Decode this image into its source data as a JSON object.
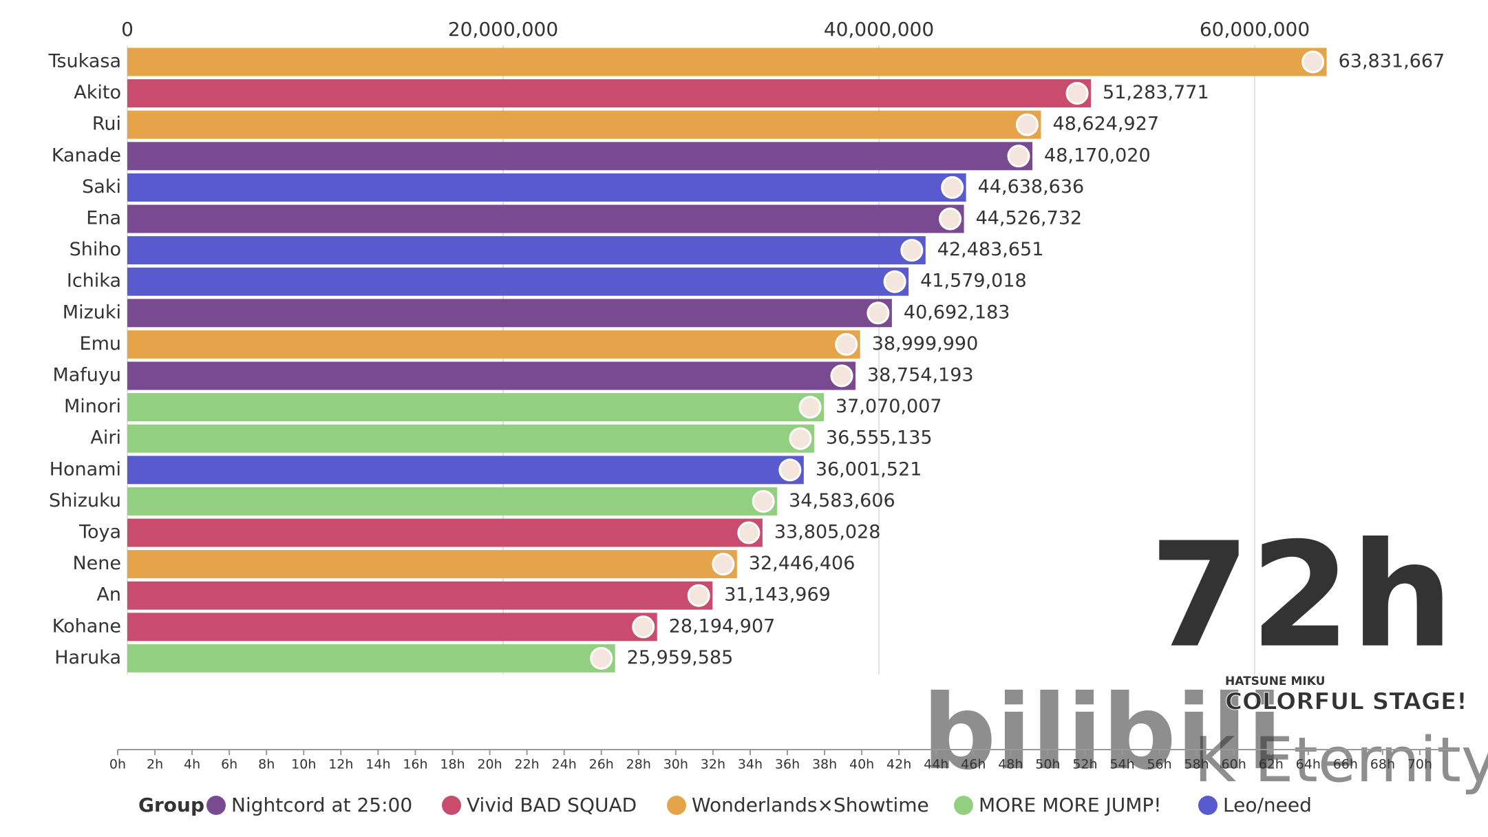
{
  "chart_data": {
    "type": "bar",
    "orientation": "horizontal",
    "categories": [
      "Tsukasa",
      "Akito",
      "Rui",
      "Kanade",
      "Saki",
      "Ena",
      "Shiho",
      "Ichika",
      "Mizuki",
      "Emu",
      "Mafuyu",
      "Minori",
      "Airi",
      "Honami",
      "Shizuku",
      "Toya",
      "Nene",
      "An",
      "Kohane",
      "Haruka"
    ],
    "values": [
      63831667,
      51283771,
      48624927,
      48170020,
      44638636,
      44526732,
      42483651,
      41579018,
      40692183,
      38999990,
      38754193,
      37070007,
      36555135,
      36001521,
      34583606,
      33805028,
      32446406,
      31143969,
      28194907,
      25959585
    ],
    "value_labels": [
      "63,831,667",
      "51,283,771",
      "48,624,927",
      "48,170,020",
      "44,638,636",
      "44,526,732",
      "42,483,651",
      "41,579,018",
      "40,692,183",
      "38,999,990",
      "38,754,193",
      "37,070,007",
      "36,555,135",
      "36,001,521",
      "34,583,606",
      "33,805,028",
      "32,446,406",
      "31,143,969",
      "28,194,907",
      "25,959,585"
    ],
    "colors": [
      "#e5a44a",
      "#c94c6e",
      "#e5a44a",
      "#7a4a90",
      "#5a5acf",
      "#7a4a90",
      "#5a5acf",
      "#5a5acf",
      "#7a4a90",
      "#e5a44a",
      "#7a4a90",
      "#93cf80",
      "#93cf80",
      "#5a5acf",
      "#93cf80",
      "#c94c6e",
      "#e5a44a",
      "#c94c6e",
      "#c94c6e",
      "#93cf80"
    ],
    "xlim": [
      0,
      70000000
    ],
    "xticks": [
      0,
      {
        "value": 20000000,
        "label": "20,000,000"
      },
      {
        "value": 40000000,
        "label": "40,000,000"
      },
      {
        "value": 60000000,
        "label": "60,000,000"
      }
    ],
    "grid": true,
    "legend": {
      "title": "Group",
      "items": [
        {
          "name": "Nightcord at 25:00",
          "color": "#7a4a90"
        },
        {
          "name": "Vivid BAD SQUAD",
          "color": "#c94c6e"
        },
        {
          "name": "Wonderlands×Showtime",
          "color": "#e5a44a"
        },
        {
          "name": "MORE MORE JUMP!",
          "color": "#93cf80"
        },
        {
          "name": "Leo/need",
          "color": "#5a5acf"
        }
      ]
    },
    "timeline": {
      "xlim": [
        0,
        72
      ],
      "current": {
        "value": 72,
        "label": "72h"
      },
      "ticks": [
        {
          "value": 0,
          "label": "0h"
        },
        {
          "value": 2,
          "label": "2h"
        },
        {
          "value": 4,
          "label": "4h"
        },
        {
          "value": 6,
          "label": "6h"
        },
        {
          "value": 8,
          "label": "8h"
        },
        {
          "value": 10,
          "label": "10h"
        },
        {
          "value": 12,
          "label": "12h"
        },
        {
          "value": 14,
          "label": "14h"
        },
        {
          "value": 16,
          "label": "16h"
        },
        {
          "value": 18,
          "label": "18h"
        },
        {
          "value": 20,
          "label": "20h"
        },
        {
          "value": 22,
          "label": "22h"
        },
        {
          "value": 24,
          "label": "24h"
        },
        {
          "value": 26,
          "label": "26h"
        },
        {
          "value": 28,
          "label": "28h"
        },
        {
          "value": 30,
          "label": "30h"
        },
        {
          "value": 32,
          "label": "32h"
        },
        {
          "value": 34,
          "label": "34h"
        },
        {
          "value": 36,
          "label": "36h"
        },
        {
          "value": 38,
          "label": "38h"
        },
        {
          "value": 40,
          "label": "40h"
        },
        {
          "value": 42,
          "label": "42h"
        },
        {
          "value": 44,
          "label": "44h"
        },
        {
          "value": 46,
          "label": "46h"
        },
        {
          "value": 48,
          "label": "48h"
        },
        {
          "value": 50,
          "label": "50h"
        },
        {
          "value": 52,
          "label": "52h"
        },
        {
          "value": 54,
          "label": "54h"
        },
        {
          "value": 56,
          "label": "56h"
        },
        {
          "value": 58,
          "label": "58h"
        },
        {
          "value": 60,
          "label": "60h"
        },
        {
          "value": 62,
          "label": "62h"
        },
        {
          "value": 64,
          "label": "64h"
        },
        {
          "value": 66,
          "label": "66h"
        },
        {
          "value": 68,
          "label": "68h"
        },
        {
          "value": 70,
          "label": "70h"
        }
      ]
    }
  },
  "logo": {
    "line1": "HATSUNE MIKU",
    "line2": "COLORFUL STAGE!"
  },
  "watermark": [
    "bilibili",
    "K Eternity"
  ]
}
